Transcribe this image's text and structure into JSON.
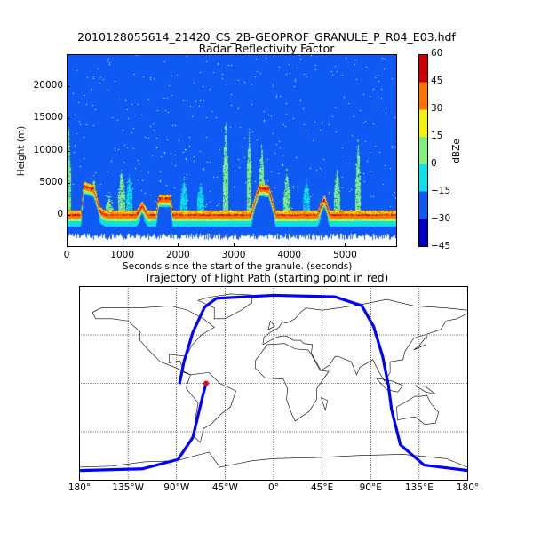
{
  "figure": {
    "title": "2010128055614_21420_CS_2B-GEOPROF_GRANULE_P_R04_E03.hdf"
  },
  "chart_data": [
    {
      "type": "heatmap",
      "title": "Radar Reflectivity Factor",
      "xlabel": "Seconds since the start of the granule. (seconds)",
      "ylabel": "Height (m)",
      "xlim": [
        0,
        5935
      ],
      "ylim": [
        -5000,
        25000
      ],
      "xticks": [
        "0",
        "1000",
        "2000",
        "3000",
        "4000",
        "5000"
      ],
      "xtick_values": [
        0,
        1000,
        2000,
        3000,
        4000,
        5000
      ],
      "yticks": [
        "0",
        "5000",
        "10000",
        "15000",
        "20000"
      ],
      "ytick_values": [
        0,
        5000,
        10000,
        15000,
        20000
      ],
      "colorbar": {
        "label": "dBZe",
        "ticks": [
          "60",
          "45",
          "30",
          "15",
          "0",
          "−15",
          "−30",
          "−45"
        ],
        "levels": [
          -45,
          -30,
          -15,
          0,
          15,
          30,
          45,
          60
        ],
        "colors": [
          "#0000c4",
          "#0f5af5",
          "#0be0e6",
          "#80f07a",
          "#f2f20a",
          "#ff7200",
          "#cc0000"
        ]
      },
      "surface_profile": {
        "t": [
          0,
          250,
          300,
          480,
          600,
          700,
          1250,
          1350,
          1450,
          1600,
          1650,
          1850,
          1900,
          3300,
          3450,
          3620,
          3750,
          4500,
          4620,
          4720,
          5935
        ],
        "height_m": [
          0,
          0,
          4500,
          4000,
          500,
          0,
          0,
          1500,
          0,
          0,
          2500,
          2500,
          0,
          0,
          4200,
          4000,
          0,
          0,
          2500,
          0,
          0
        ]
      },
      "cloud_features": [
        {
          "t": 20,
          "top_m": 16000,
          "dbz": 5
        },
        {
          "t": 480,
          "top_m": 6500,
          "dbz": 5
        },
        {
          "t": 760,
          "top_m": 4000,
          "dbz": 5
        },
        {
          "t": 980,
          "top_m": 8000,
          "dbz": 5
        },
        {
          "t": 1120,
          "top_m": 7000,
          "dbz": -5
        },
        {
          "t": 2100,
          "top_m": 6500,
          "dbz": -5
        },
        {
          "t": 2400,
          "top_m": 6000,
          "dbz": -5
        },
        {
          "t": 2850,
          "top_m": 16000,
          "dbz": 5
        },
        {
          "t": 3270,
          "top_m": 14000,
          "dbz": 5
        },
        {
          "t": 3500,
          "top_m": 12500,
          "dbz": 5
        },
        {
          "t": 3950,
          "top_m": 8000,
          "dbz": 5
        },
        {
          "t": 4300,
          "top_m": 6500,
          "dbz": -5
        },
        {
          "t": 4850,
          "top_m": 8000,
          "dbz": 5
        },
        {
          "t": 5230,
          "top_m": 12500,
          "dbz": 5
        }
      ]
    },
    {
      "type": "line",
      "title": "Trajectory of Flight Path (starting point in red)",
      "projection": "cylindrical",
      "xlim": [
        -180,
        180
      ],
      "ylim": [
        -90,
        90
      ],
      "xticks": [
        "180°",
        "135°W",
        "90°W",
        "45°W",
        "0°",
        "45°E",
        "90°E",
        "135°E",
        "180°"
      ],
      "xtick_values": [
        -180,
        -135,
        -90,
        -45,
        0,
        45,
        90,
        135,
        180
      ],
      "parallels": [
        -45,
        0,
        45
      ],
      "grid": true,
      "line_color": "#0000ff",
      "start_color": "#ff0000",
      "start_point": {
        "lon": -62.6,
        "lat": 0
      },
      "series": [
        {
          "lon": [
            -62.6,
            -65.4,
            -74.9,
            -88.7,
            -121.7,
            -179.5
          ],
          "lat": [
            0,
            -10.3,
            -50.2,
            -70.8,
            -79.5,
            -81
          ]
        },
        {
          "lon": [
            180,
            139.5,
            117.5,
            109.3,
            106.5,
            101,
            92.7,
            81.8,
            57,
            0.3,
            -53,
            -64,
            -74.9,
            -83.2,
            -87.3
          ],
          "lat": [
            -81,
            -76,
            -57,
            -24,
            -2,
            25.4,
            52.9,
            72.2,
            80.4,
            81.8,
            79,
            70.8,
            47.4,
            19.9,
            -0.7
          ]
        }
      ]
    }
  ]
}
